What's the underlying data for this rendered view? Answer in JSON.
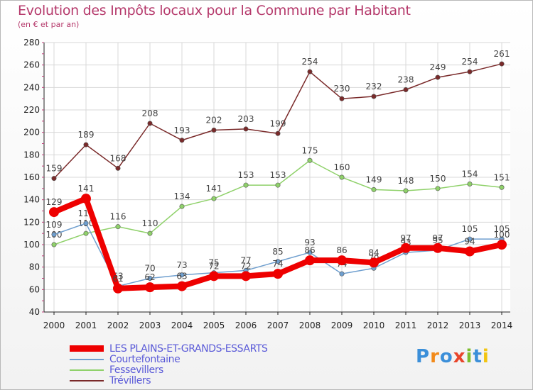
{
  "header": {
    "title": "Evolution des Impôts locaux pour la Commune par Habitant",
    "subtitle": "(en € et par an)"
  },
  "logo": {
    "text": "Proxiti",
    "colors": [
      "#3b8fd9",
      "#f28a1a",
      "#3b8fd9",
      "#e8452b",
      "#7dbd2e",
      "#3b8fd9",
      "#f2c511"
    ]
  },
  "chart_data": {
    "type": "line",
    "title": "Evolution des Impôts locaux pour la Commune par Habitant",
    "ylabel": "(en € et par an)",
    "x": [
      "2000",
      "2001",
      "2002",
      "2003",
      "2004",
      "2005",
      "2006",
      "2007",
      "2008",
      "2009",
      "2010",
      "2011",
      "2012",
      "2013",
      "2014"
    ],
    "ylim": [
      40,
      280
    ],
    "yticks": [
      40,
      60,
      80,
      100,
      120,
      140,
      160,
      180,
      200,
      220,
      240,
      260,
      280
    ],
    "grid": true,
    "legend_position": "bottom-left",
    "series": [
      {
        "name": "Trévillers",
        "color": "#7a2a2a",
        "values": [
          159,
          189,
          168,
          208,
          193,
          202,
          203,
          199,
          254,
          230,
          232,
          238,
          249,
          254,
          261
        ]
      },
      {
        "name": "Fessevillers",
        "color": "#8fd16a",
        "values": [
          100,
          110,
          116,
          110,
          134,
          141,
          153,
          153,
          175,
          160,
          149,
          148,
          150,
          154,
          151
        ]
      },
      {
        "name": "Courtefontaine",
        "color": "#6f9fcf",
        "values": [
          109,
          119,
          63,
          70,
          73,
          75,
          77,
          85,
          93,
          74,
          79,
          93,
          95,
          105,
          105
        ]
      },
      {
        "name": "LES PLAINS-ET-GRANDS-ESSARTS",
        "color": "#ee0000",
        "values": [
          129,
          141,
          61,
          62,
          63,
          72,
          72,
          74,
          86,
          86,
          84,
          97,
          97,
          94,
          100
        ]
      }
    ]
  }
}
